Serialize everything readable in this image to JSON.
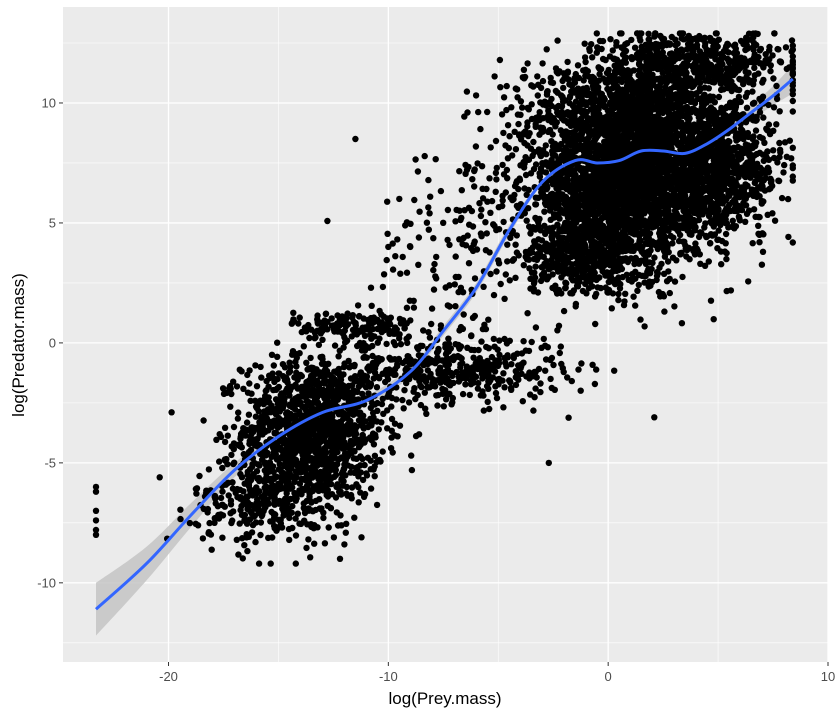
{
  "chart_data": {
    "type": "scatter",
    "title": "",
    "xlabel": "log(Prey.mass)",
    "ylabel": "log(Predator.mass)",
    "xlim": [
      -24.8,
      10
    ],
    "ylim": [
      -13.3,
      14
    ],
    "x_ticks": [
      -20,
      -10,
      0,
      10
    ],
    "x_tick_labels": [
      "-20",
      "-10",
      "0",
      "10"
    ],
    "y_ticks": [
      -10,
      -5,
      0,
      5,
      10
    ],
    "y_tick_labels": [
      "-10",
      "-5",
      "0",
      "5",
      "10"
    ],
    "grid": true,
    "legend": "none",
    "colors": {
      "panel": "#ebebeb",
      "grid": "#ffffff",
      "points": "#000000",
      "smooth_line": "#3366ff",
      "confidence_band": "#c4c4c4"
    },
    "clusters": [
      {
        "x_mean": -13.4,
        "y_mean": -3.6,
        "x_sd": 1.6,
        "y_sd": 1.5,
        "n": 1300
      },
      {
        "x_mean": -7.2,
        "y_mean": -1.1,
        "x_sd": 2.6,
        "y_sd": 0.7,
        "n": 450
      },
      {
        "x_mean": -11.5,
        "y_mean": 0.7,
        "x_sd": 1.4,
        "y_sd": 0.3,
        "n": 150
      },
      {
        "x_mean": -15.5,
        "y_mean": -6.6,
        "x_sd": 1.7,
        "y_sd": 0.9,
        "n": 300
      },
      {
        "x_mean": -7.0,
        "y_mean": 4.0,
        "x_sd": 1.8,
        "y_sd": 2.3,
        "n": 140
      },
      {
        "x_mean": 1.0,
        "y_mean": 6.8,
        "x_sd": 2.3,
        "y_sd": 1.7,
        "n": 3000
      },
      {
        "x_mean": 1.8,
        "y_mean": 9.8,
        "x_sd": 2.8,
        "y_sd": 1.1,
        "n": 900
      },
      {
        "x_mean": 4.0,
        "y_mean": 11.8,
        "x_sd": 2.2,
        "y_sd": 0.6,
        "n": 450
      },
      {
        "x_mean": -1.0,
        "y_mean": 3.8,
        "x_sd": 1.4,
        "y_sd": 1.0,
        "n": 500
      },
      {
        "x_mean": 5.5,
        "y_mean": 7.2,
        "x_sd": 1.3,
        "y_sd": 1.2,
        "n": 500
      }
    ],
    "outliers": [
      {
        "x": -23.3,
        "y": -6.0
      },
      {
        "x": -23.3,
        "y": -6.2
      },
      {
        "x": -23.3,
        "y": -7.0
      },
      {
        "x": -23.3,
        "y": -7.4
      },
      {
        "x": -23.3,
        "y": -7.8
      },
      {
        "x": -23.3,
        "y": -8.0
      },
      {
        "x": -20.4,
        "y": -5.6
      },
      {
        "x": -11.5,
        "y": 8.5
      },
      {
        "x": -12.2,
        "y": -9.0
      },
      {
        "x": -12.0,
        "y": -8.4
      },
      {
        "x": -2.7,
        "y": -5.0
      },
      {
        "x": 2.1,
        "y": -3.1
      },
      {
        "x": -17.2,
        "y": -1.8
      },
      {
        "x": -16.1,
        "y": -5.0
      },
      {
        "x": -9.5,
        "y": 6.0
      },
      {
        "x": -9.0,
        "y": 4.0
      },
      {
        "x": -10.0,
        "y": 4.0
      },
      {
        "x": -4.2,
        "y": 10.6
      }
    ],
    "series": [
      {
        "type": "smooth",
        "x": [
          -23.3,
          -21,
          -19,
          -17,
          -15,
          -13,
          -11,
          -9,
          -7.5,
          -6,
          -4.5,
          -3,
          -1.5,
          -0.5,
          0.5,
          1.5,
          2.5,
          3.5,
          4.5,
          5.5,
          6.5,
          7.5,
          8.4
        ],
        "y": [
          -11.1,
          -9.2,
          -7.2,
          -5.3,
          -3.9,
          -2.9,
          -2.4,
          -1.2,
          0.5,
          2.3,
          4.7,
          6.7,
          7.6,
          7.5,
          7.6,
          8.0,
          8.0,
          7.9,
          8.3,
          8.9,
          9.6,
          10.3,
          11.0
        ],
        "ci_low": [
          -12.2,
          -9.9,
          -7.7,
          -5.6,
          -4.1,
          -3.1,
          -2.6,
          -1.4,
          0.3,
          2.1,
          4.5,
          6.6,
          7.5,
          7.4,
          7.5,
          7.9,
          7.9,
          7.8,
          8.2,
          8.7,
          9.3,
          9.9,
          10.4
        ],
        "ci_high": [
          -10.0,
          -8.5,
          -6.7,
          -5.0,
          -3.7,
          -2.7,
          -2.2,
          -1.0,
          0.7,
          2.5,
          4.9,
          6.8,
          7.7,
          7.6,
          7.7,
          8.1,
          8.1,
          8.0,
          8.4,
          9.1,
          9.9,
          10.7,
          11.6
        ]
      }
    ]
  }
}
